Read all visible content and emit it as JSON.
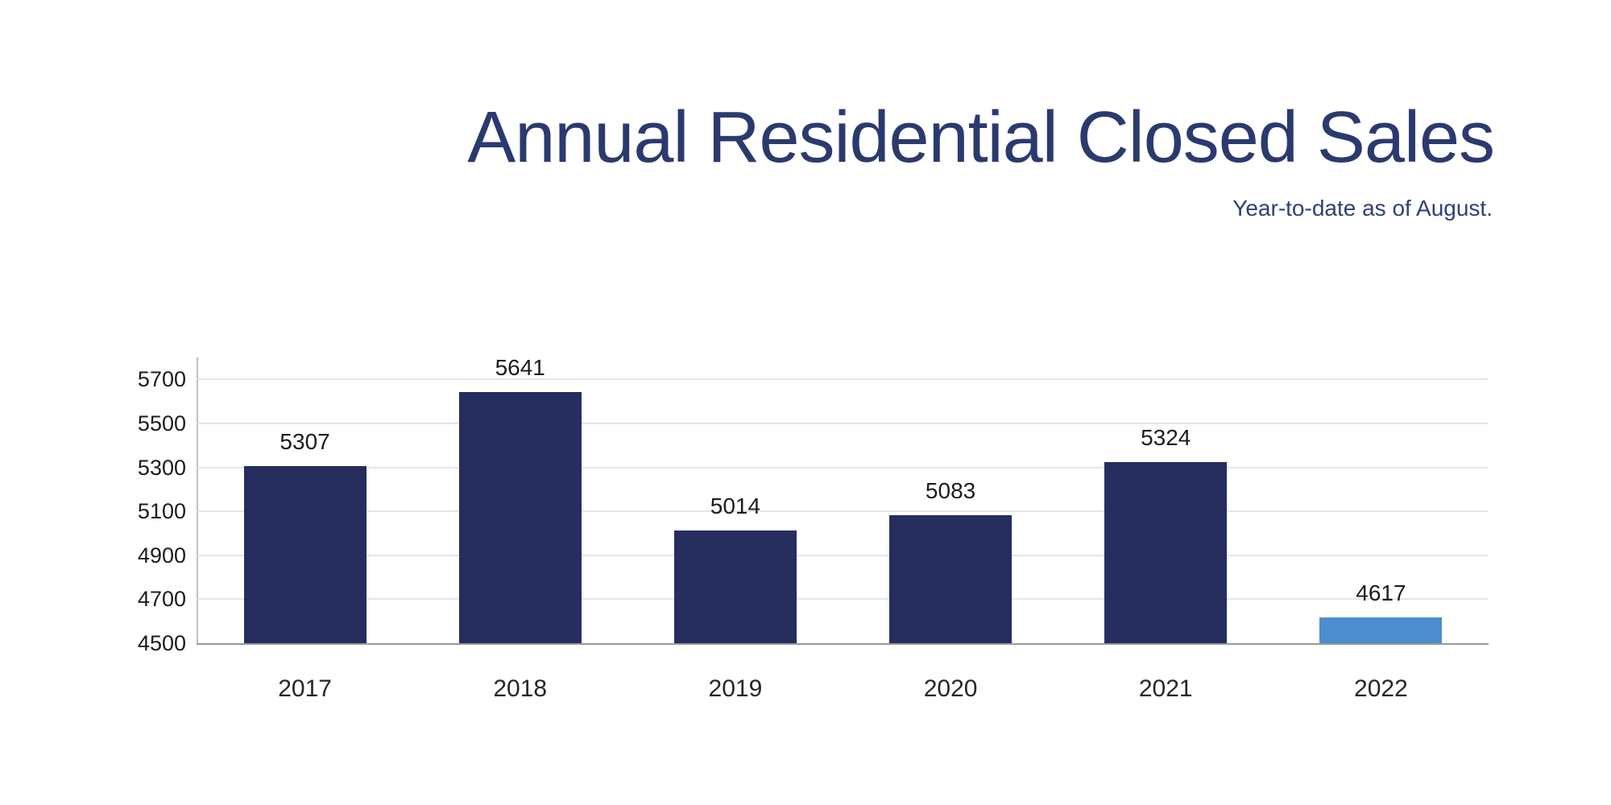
{
  "title": "Annual Residential Closed Sales",
  "subtitle": "Year-to-date as of August.",
  "chart_data": {
    "type": "bar",
    "title": "Annual Residential Closed Sales",
    "subtitle": "Year-to-date as of August.",
    "categories": [
      "2017",
      "2018",
      "2019",
      "2020",
      "2021",
      "2022"
    ],
    "values": [
      5307,
      5641,
      5014,
      5083,
      5324,
      4617
    ],
    "xlabel": "",
    "ylabel": "",
    "ylim": [
      4500,
      5800
    ],
    "yticks": [
      4500,
      4700,
      4900,
      5100,
      5300,
      5500,
      5700
    ],
    "grid": true,
    "legend": false,
    "bar_colors": [
      "#262d5f",
      "#262d5f",
      "#262d5f",
      "#262d5f",
      "#262d5f",
      "#4d8dcd"
    ]
  },
  "colors": {
    "bar_primary": "#262d5f",
    "bar_highlight": "#4d8dcd",
    "title_text": "#2b3a6e",
    "subtitle_text": "#323f75",
    "tick_text": "#1c1c1c",
    "gridline": "#dfe6f1",
    "baseline": "#97999c",
    "yaxis_line": "#bdc1c7",
    "background": "#ffffff"
  }
}
